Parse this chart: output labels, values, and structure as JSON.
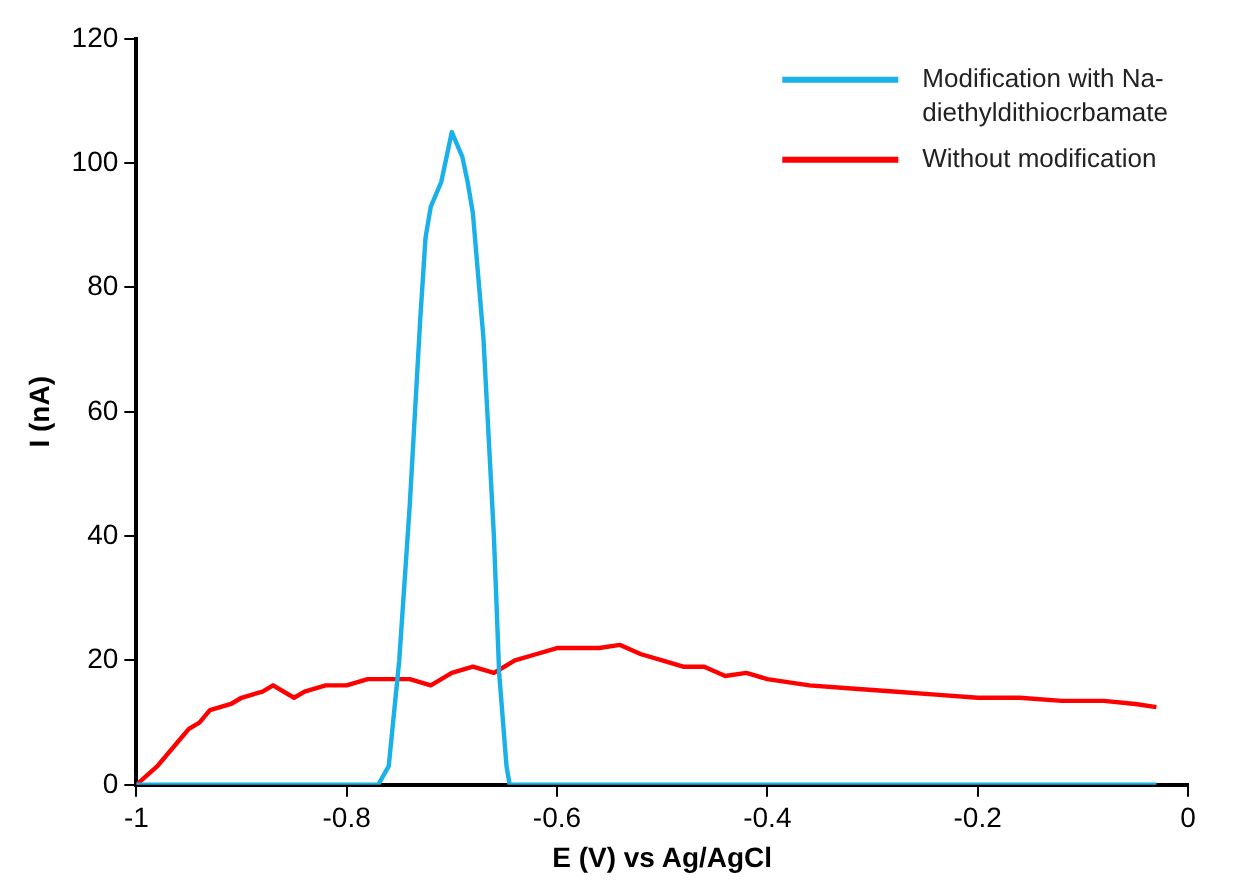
{
  "chart_data": {
    "type": "line",
    "xlabel": "E (V) vs Ag/AgCl",
    "ylabel": "I (nA)",
    "xlim": [
      -1,
      0
    ],
    "xticks": [
      -1,
      -0.8,
      -0.6,
      -0.4,
      -0.2,
      0
    ],
    "ylim": [
      0,
      120
    ],
    "yticks": [
      0,
      20,
      40,
      60,
      80,
      100,
      120
    ],
    "grid": false,
    "legend": "top right",
    "marker": "none",
    "line_style": "solid",
    "series": [
      {
        "name": "Modification with Na-diethyldithiocrbamate",
        "color": "#1ab0e8",
        "x": [
          -1,
          -0.77,
          -0.76,
          -0.75,
          -0.74,
          -0.73,
          -0.725,
          -0.72,
          -0.71,
          -0.7,
          -0.69,
          -0.685,
          -0.68,
          -0.67,
          -0.66,
          -0.655,
          -0.648,
          -0.645,
          -0.03
        ],
        "values": [
          0,
          0,
          3,
          20,
          45,
          75,
          88,
          93,
          97,
          105,
          101,
          97,
          92,
          72,
          40,
          18,
          3,
          0,
          0
        ]
      },
      {
        "name": "Without modification",
        "color": "#ff0000",
        "x": [
          -1,
          -0.98,
          -0.96,
          -0.95,
          -0.94,
          -0.93,
          -0.91,
          -0.9,
          -0.88,
          -0.87,
          -0.85,
          -0.84,
          -0.82,
          -0.8,
          -0.78,
          -0.76,
          -0.74,
          -0.72,
          -0.7,
          -0.68,
          -0.66,
          -0.64,
          -0.62,
          -0.6,
          -0.58,
          -0.56,
          -0.54,
          -0.52,
          -0.5,
          -0.48,
          -0.46,
          -0.44,
          -0.42,
          -0.4,
          -0.36,
          -0.32,
          -0.28,
          -0.24,
          -0.2,
          -0.16,
          -0.12,
          -0.08,
          -0.05,
          -0.03
        ],
        "values": [
          0,
          3,
          7,
          9,
          10,
          12,
          13,
          14,
          15,
          16,
          14,
          15,
          16,
          16,
          17,
          17,
          17,
          16,
          18,
          19,
          18,
          20,
          21,
          22,
          22,
          22,
          22.5,
          21,
          20,
          19,
          19,
          17.5,
          18,
          17,
          16,
          15.5,
          15,
          14.5,
          14,
          14,
          13.5,
          13.5,
          13,
          12.5
        ]
      }
    ]
  }
}
